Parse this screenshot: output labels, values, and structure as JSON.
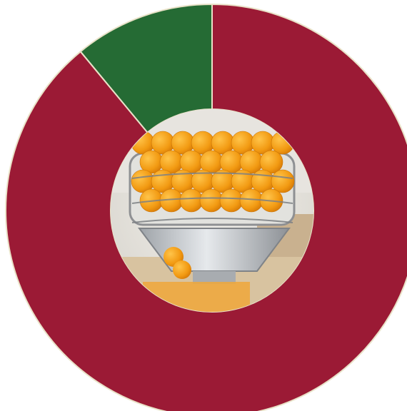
{
  "chart_data": {
    "type": "pie",
    "variant": "donut",
    "slices": [
      {
        "value": 89,
        "color": "#9b1a35"
      },
      {
        "value": 11,
        "color": "#256b34"
      }
    ],
    "center_image": "photo-of-oranges-in-juicer",
    "title": "",
    "legend": "none"
  }
}
